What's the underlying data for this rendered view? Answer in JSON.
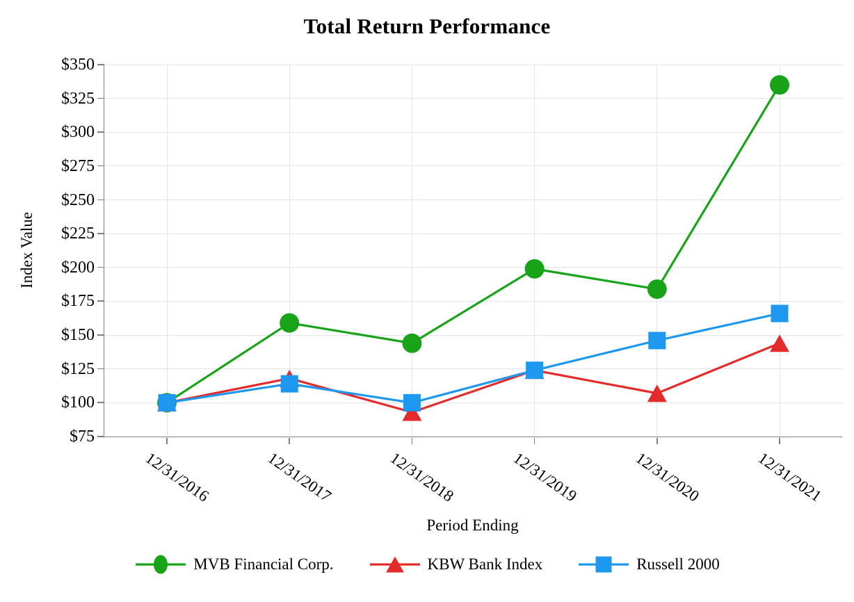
{
  "title": "Total Return Performance",
  "colors": {
    "mvb_green": "#18a318",
    "kbw_red": "#e32b2b",
    "russell_blue": "#1e98ef",
    "gridline": "#e4e4e4",
    "axis": "#7f7f7f",
    "text": "#000000"
  },
  "chart_data": {
    "type": "line",
    "title": "Total Return Performance",
    "xlabel": "Period Ending",
    "ylabel": "Index Value",
    "categories": [
      "12/31/2016",
      "12/31/2017",
      "12/31/2018",
      "12/31/2019",
      "12/31/2020",
      "12/31/2021"
    ],
    "series": [
      {
        "name": "MVB Financial Corp.",
        "marker": "circle",
        "color": "#18a318",
        "values": [
          100,
          159,
          144,
          199,
          184,
          335
        ]
      },
      {
        "name": "KBW Bank Index",
        "marker": "triangle",
        "color": "#e32b2b",
        "values": [
          100,
          118,
          93,
          124,
          107,
          144
        ]
      },
      {
        "name": "Russell 2000",
        "marker": "square",
        "color": "#1e98ef",
        "values": [
          100,
          114,
          100,
          124,
          146,
          166
        ]
      }
    ],
    "ylim": [
      75,
      350
    ],
    "ytick_step": 25,
    "ytick_prefix": "$",
    "grid": true,
    "legend_position": "bottom"
  }
}
